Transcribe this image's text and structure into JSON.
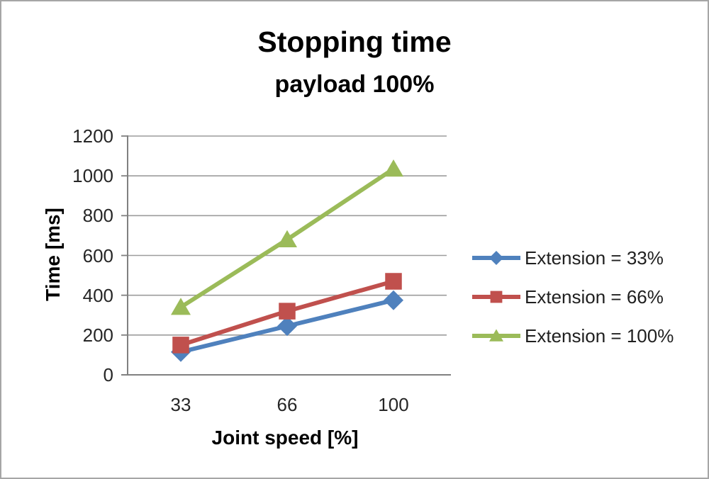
{
  "window": {
    "background": "#ffffff",
    "border_color": "#a6a6a6"
  },
  "chart_data": {
    "type": "line",
    "title": "Stopping time",
    "subtitle": "payload 100%",
    "xlabel": "Joint speed [%]",
    "ylabel": "Time [ms]",
    "categories": [
      "33",
      "66",
      "100"
    ],
    "series": [
      {
        "name": "Extension = 33%",
        "color": "#4F81BD",
        "marker": "diamond",
        "values": [
          115,
          245,
          375
        ]
      },
      {
        "name": "Extension = 66%",
        "color": "#C0504D",
        "marker": "square",
        "values": [
          150,
          320,
          470
        ]
      },
      {
        "name": "Extension = 100%",
        "color": "#9BBB59",
        "marker": "triangle",
        "values": [
          340,
          680,
          1035
        ]
      }
    ],
    "ylim": [
      0,
      1200
    ],
    "yticks": [
      0,
      200,
      400,
      600,
      800,
      1000,
      1200
    ],
    "grid": true,
    "grid_color": "#9c9c9c",
    "axis_color": "#808080",
    "text_color": "#262626",
    "legend_position": "right"
  }
}
